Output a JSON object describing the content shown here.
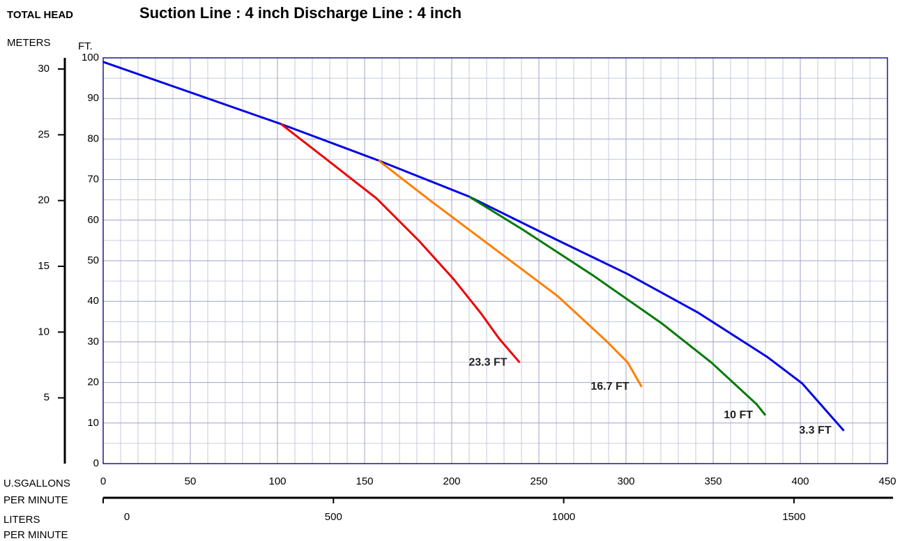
{
  "chart_data": {
    "type": "line",
    "title": "Suction  Line : 4 inch   Discharge Line : 4 inch",
    "y_label": "TOTAL HEAD",
    "y2_label": "METERS",
    "y_unit": "FT.",
    "x_label": [
      "U.SGALLONS",
      "PER MINUTE"
    ],
    "x2_label": [
      "LITERS",
      "PER MINUTE"
    ],
    "xlim": [
      0,
      450
    ],
    "xticks": [
      0,
      50,
      100,
      150,
      200,
      250,
      300,
      350,
      400,
      450
    ],
    "ylim": [
      0,
      100
    ],
    "yticks": [
      0,
      10,
      20,
      30,
      40,
      50,
      60,
      70,
      80,
      90,
      100
    ],
    "y2lim": [
      0,
      30
    ],
    "y2ticks": [
      5,
      10,
      15,
      20,
      25,
      30
    ],
    "x2lim": [
      0,
      1703
    ],
    "x2ticks": [
      0,
      500,
      1000,
      1500
    ],
    "grid": true,
    "minor_x_divisions": 5,
    "minor_y_divisions": 2,
    "series": [
      {
        "name": "3.3 FT",
        "color": "#0000e6",
        "x": [
          0,
          102,
          158,
          210,
          261,
          301,
          341,
          381,
          401,
          425
        ],
        "values": [
          99,
          83.7,
          74.7,
          65.8,
          55,
          46.7,
          37.3,
          26.3,
          19.8,
          8.1
        ]
      },
      {
        "name": "10 FT",
        "color": "#007a00",
        "x": [
          210,
          241,
          281,
          321,
          349,
          375,
          380
        ],
        "values": [
          65.8,
          57.6,
          46.4,
          34.4,
          24.9,
          14.6,
          11.9
        ]
      },
      {
        "name": "16.7 FT",
        "color": "#ff7f00",
        "x": [
          158,
          189,
          221,
          261,
          289,
          301,
          309
        ],
        "values": [
          74.7,
          64.4,
          54.1,
          41.2,
          30.1,
          24.9,
          18.9
        ]
      },
      {
        "name": "23.3 FT",
        "color": "#ee0000",
        "x": [
          102,
          129,
          157,
          181,
          201,
          217,
          227,
          239
        ],
        "values": [
          83.7,
          74.7,
          65.3,
          55,
          45.5,
          36.9,
          30.9,
          24.9
        ]
      }
    ]
  }
}
